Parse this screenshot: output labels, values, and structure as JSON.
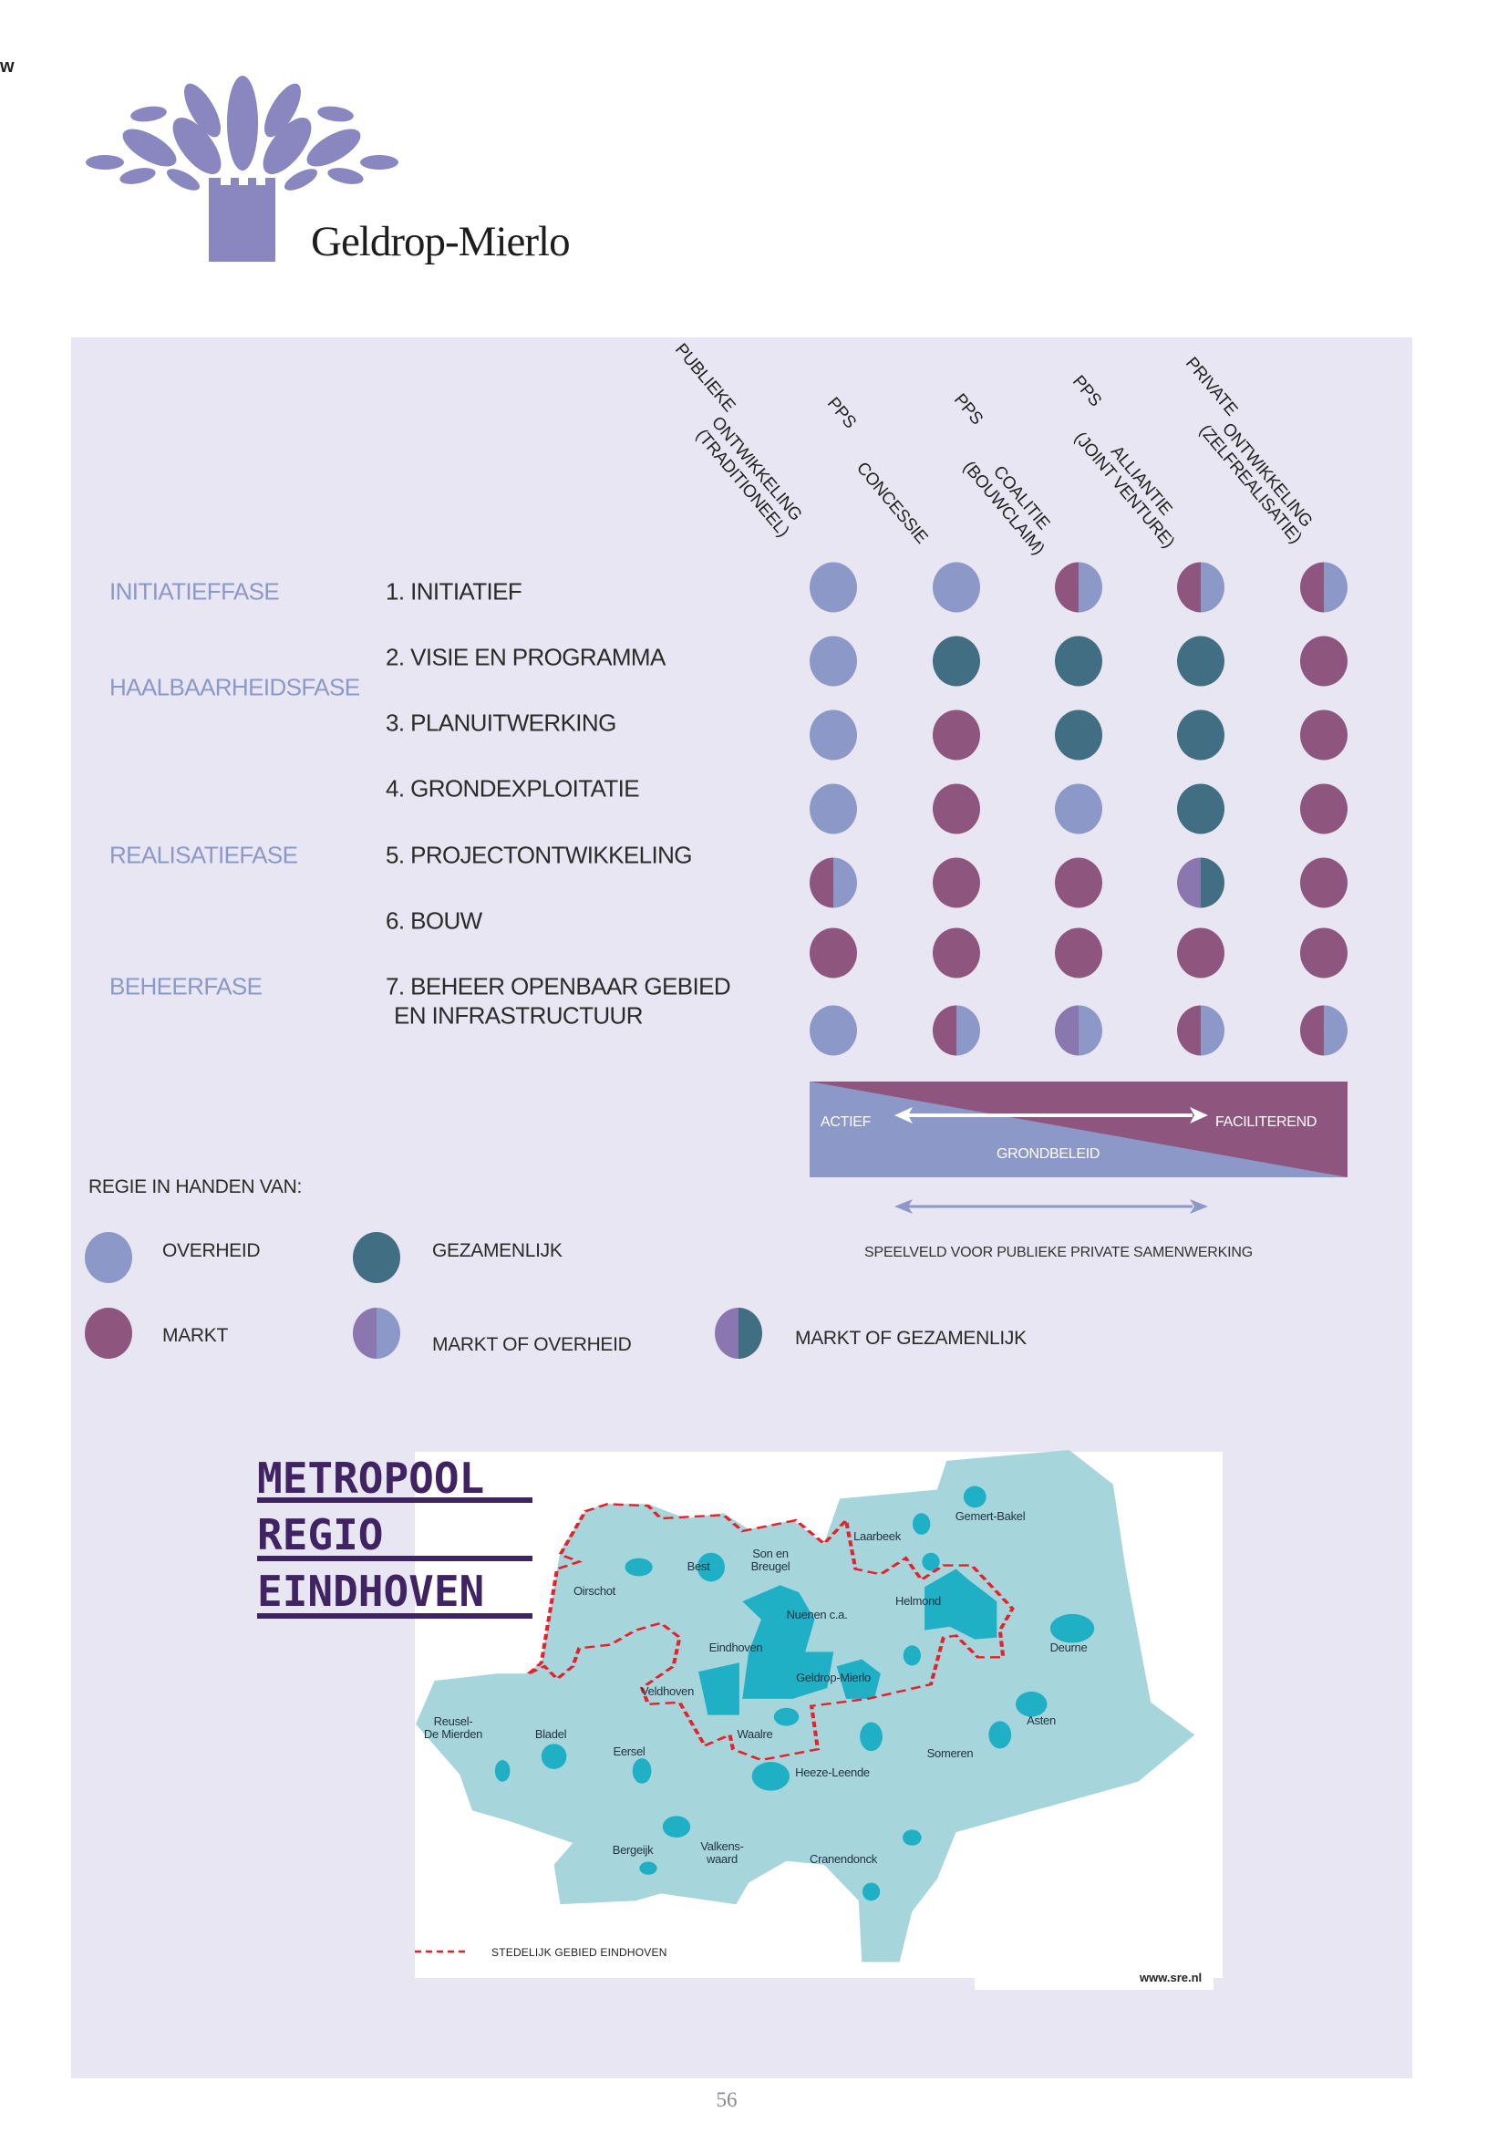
{
  "corner_mark": "w",
  "logo": {
    "name": "Geldrop-Mierlo",
    "color": "#8a86bf"
  },
  "columns": [
    {
      "lines": [
        "PUBLIEKE",
        "ONTWIKKELING",
        "(TRADITIONEEL)"
      ]
    },
    {
      "lines": [
        "PPS",
        "CONCESSIE"
      ]
    },
    {
      "lines": [
        "PPS",
        "COALITIE",
        "(BOUWCLAIM)"
      ]
    },
    {
      "lines": [
        "PPS",
        "ALLIANTIE",
        "(JOINT VENTURE)"
      ]
    },
    {
      "lines": [
        "PRIVATE",
        "ONTWIKKELING",
        "(ZELFREALISATIE)"
      ]
    }
  ],
  "phases": [
    "INITIATIEFFASE",
    "HAALBAARHEIDSFASE",
    "REALISATIEFASE",
    "BEHEERFASE"
  ],
  "steps": [
    "1. INITIATIEF",
    "2. VISIE EN PROGRAMMA",
    "3. PLANUITWERKING",
    "4. GRONDEXPLOITATIE",
    "5. PROJECTONTWIKKELING",
    "6. BOUW",
    "7. BEHEER OPENBAAR GEBIED",
    "EN INFRASTRUCTUUR"
  ],
  "colors": {
    "overheid": "#8c98c8",
    "markt": "#8e567e",
    "markt_light": "#8b77b0",
    "gezamenlijk": "#416e82",
    "background": "#e8e6f2",
    "phase_text": "#8c98c8"
  },
  "matrix": [
    [
      [
        "overheid",
        "overheid"
      ],
      [
        "overheid",
        "overheid"
      ],
      [
        "markt",
        "overheid"
      ],
      [
        "markt",
        "overheid"
      ],
      [
        "markt",
        "overheid"
      ]
    ],
    [
      [
        "overheid",
        "overheid"
      ],
      [
        "gezamenlijk",
        "gezamenlijk"
      ],
      [
        "gezamenlijk",
        "gezamenlijk"
      ],
      [
        "gezamenlijk",
        "gezamenlijk"
      ],
      [
        "markt",
        "markt"
      ]
    ],
    [
      [
        "overheid",
        "overheid"
      ],
      [
        "markt",
        "markt"
      ],
      [
        "gezamenlijk",
        "gezamenlijk"
      ],
      [
        "gezamenlijk",
        "gezamenlijk"
      ],
      [
        "markt",
        "markt"
      ]
    ],
    [
      [
        "overheid",
        "overheid"
      ],
      [
        "markt",
        "markt"
      ],
      [
        "overheid",
        "overheid"
      ],
      [
        "gezamenlijk",
        "gezamenlijk"
      ],
      [
        "markt",
        "markt"
      ]
    ],
    [
      [
        "markt",
        "overheid"
      ],
      [
        "markt",
        "markt"
      ],
      [
        "markt",
        "markt"
      ],
      [
        "markt_light",
        "gezamenlijk"
      ],
      [
        "markt",
        "markt"
      ]
    ],
    [
      [
        "markt",
        "markt"
      ],
      [
        "markt",
        "markt"
      ],
      [
        "markt",
        "markt"
      ],
      [
        "markt",
        "markt"
      ],
      [
        "markt",
        "markt"
      ]
    ],
    [
      [
        "overheid",
        "overheid"
      ],
      [
        "markt",
        "overheid"
      ],
      [
        "markt_light",
        "overheid"
      ],
      [
        "markt",
        "overheid"
      ],
      [
        "markt",
        "overheid"
      ]
    ]
  ],
  "grondbeleid": {
    "left_label": "ACTIEF",
    "right_label": "FACILITEREND",
    "center_label": "GRONDBELEID",
    "speelveld_label": "SPEELVELD VOOR PUBLIEKE PRIVATE SAMENWERKING"
  },
  "legend": {
    "title": "REGIE IN HANDEN VAN:",
    "items": [
      {
        "label": "OVERHEID",
        "left": "overheid",
        "right": "overheid"
      },
      {
        "label": "GEZAMENLIJK",
        "left": "gezamenlijk",
        "right": "gezamenlijk"
      },
      {
        "label": "MARKT",
        "left": "markt",
        "right": "markt"
      },
      {
        "label": "MARKT OF OVERHEID",
        "left": "markt_light",
        "right": "overheid"
      },
      {
        "label": "MARKT OF GEZAMENLIJK",
        "left": "markt_light",
        "right": "gezamenlijk"
      }
    ]
  },
  "map": {
    "logo_lines": [
      "METROPOOL",
      "REGIO",
      "EINDHOVEN"
    ],
    "towns": [
      "Gemert-Bakel",
      "Laarbeek",
      "Son en\nBreugel",
      "Best",
      "Oirschot",
      "Helmond",
      "Nuenen c.a.",
      "Eindhoven",
      "Deurne",
      "Geldrop-Mierlo",
      "Veldhoven",
      "Reusel-\nDe Mierden",
      "Bladel",
      "Waalre",
      "Asten",
      "Eersel",
      "Someren",
      "Heeze-Leende",
      "Bergeijk",
      "Valkens-\nwaard",
      "Cranendonck"
    ],
    "legend_label": "STEDELIJK GEBIED EINDHOVEN",
    "source": "www.sre.nl",
    "land_color": "#a7d5dc",
    "urban_color": "#1fb0c6",
    "boundary_color": "#e8202a"
  },
  "page_number": "56"
}
